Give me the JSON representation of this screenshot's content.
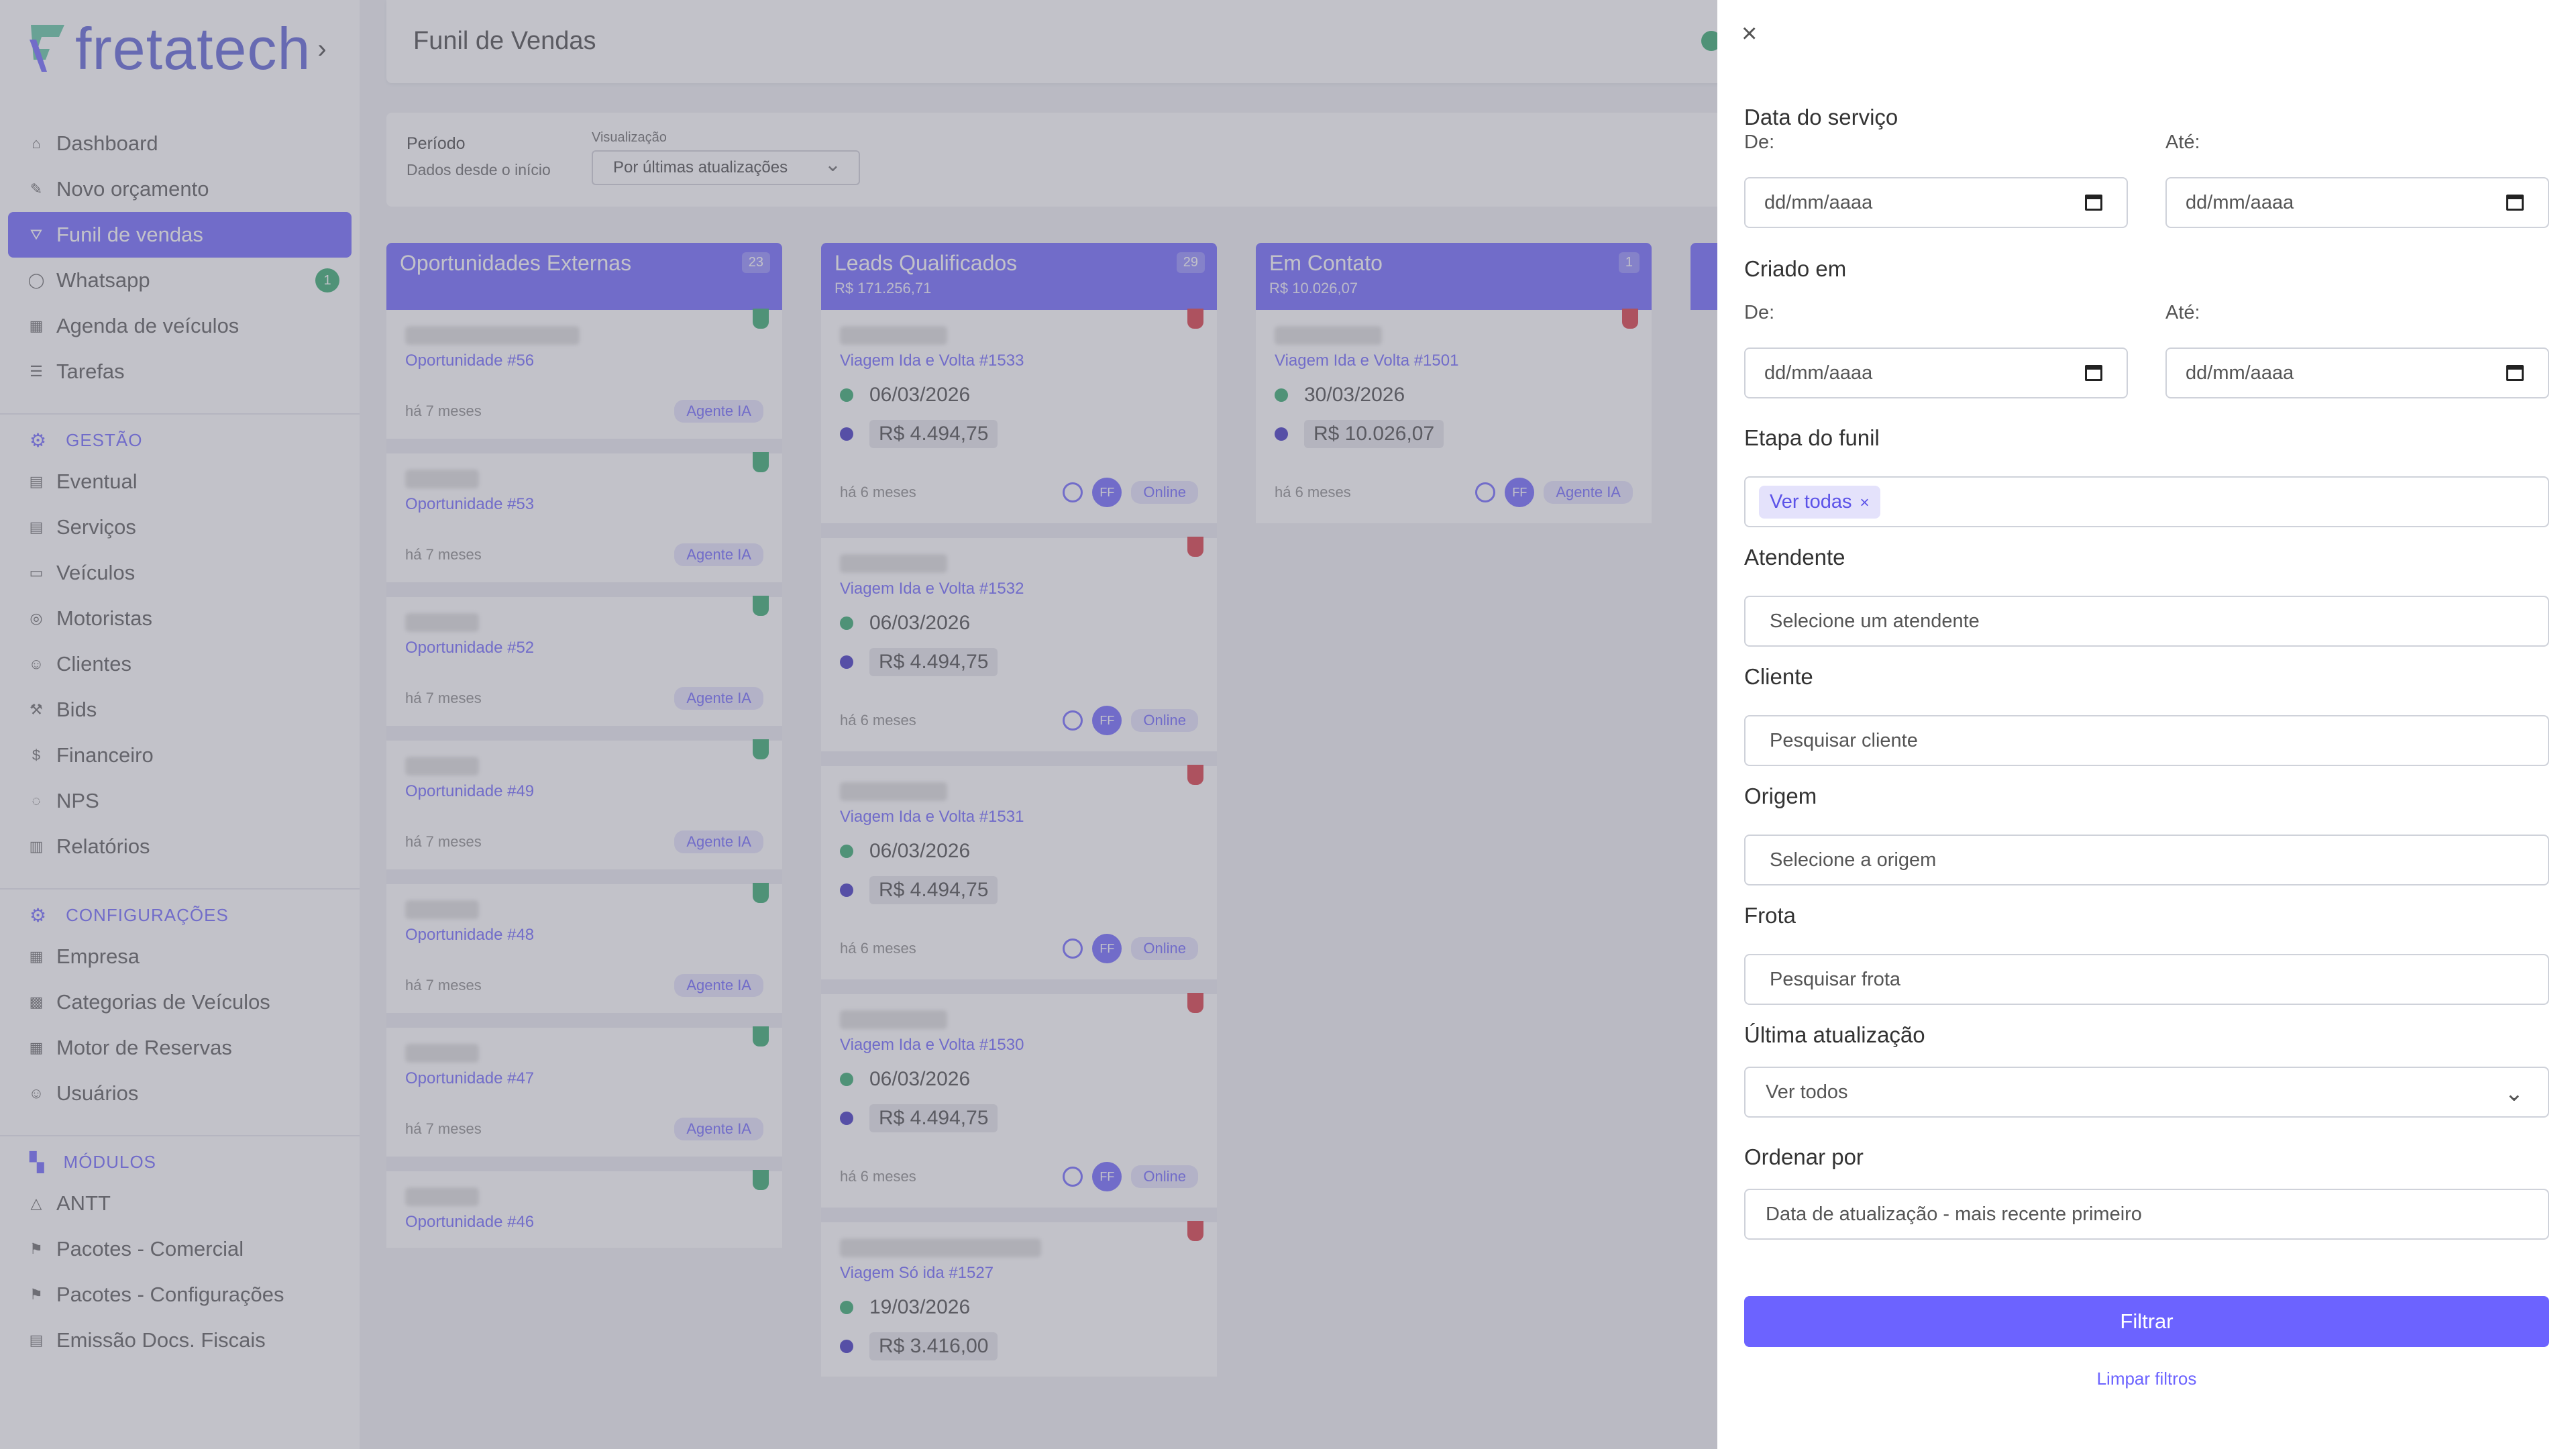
{
  "sidebar": {
    "logo_text": "fretatech",
    "items": [
      {
        "label": "Dashboard",
        "icon": "home-icon"
      },
      {
        "label": "Novo orçamento",
        "icon": "edit-icon"
      },
      {
        "label": "Funil de vendas",
        "icon": "funnel-icon",
        "active": true
      },
      {
        "label": "Whatsapp",
        "icon": "whatsapp-icon",
        "badge": "1"
      },
      {
        "label": "Agenda de veículos",
        "icon": "calendar-icon"
      },
      {
        "label": "Tarefas",
        "icon": "list-icon"
      }
    ],
    "gestao_title": "GESTÃO",
    "gestao": [
      "Eventual",
      "Serviços",
      "Veículos",
      "Motoristas",
      "Clientes",
      "Bids",
      "Financeiro",
      "NPS",
      "Relatórios"
    ],
    "config_title": "CONFIGURAÇÕES",
    "config": [
      "Empresa",
      "Categorias de Veículos",
      "Motor de Reservas",
      "Usuários"
    ],
    "modulos_title": "MÓDULOS",
    "modulos": [
      "ANTT",
      "Pacotes - Comercial",
      "Pacotes - Configurações",
      "Emissão Docs. Fiscais"
    ]
  },
  "header": {
    "title": "Funil de Vendas"
  },
  "filters_bar": {
    "period_label": "Período",
    "period_value": "Dados desde o início",
    "view_label": "Visualização",
    "view_value": "Por últimas atualizações"
  },
  "columns": [
    {
      "title": "Oportunidades Externas",
      "count": "23",
      "subtitle": "",
      "cards": [
        {
          "link": "Oportunidade #56",
          "time": "há 7 meses",
          "chip": "Agente IA"
        },
        {
          "link": "Oportunidade #53",
          "time": "há 7 meses",
          "chip": "Agente IA"
        },
        {
          "link": "Oportunidade #52",
          "time": "há 7 meses",
          "chip": "Agente IA"
        },
        {
          "link": "Oportunidade #49",
          "time": "há 7 meses",
          "chip": "Agente IA"
        },
        {
          "link": "Oportunidade #48",
          "time": "há 7 meses",
          "chip": "Agente IA"
        },
        {
          "link": "Oportunidade #47",
          "time": "há 7 meses",
          "chip": "Agente IA"
        },
        {
          "link": "Oportunidade #46",
          "time": "",
          "chip": ""
        }
      ]
    },
    {
      "title": "Leads Qualificados",
      "count": "29",
      "subtitle": "R$ 171.256,71",
      "cards": [
        {
          "link": "Viagem Ida e Volta #1533",
          "date": "06/03/2026",
          "value": "R$ 4.494,75",
          "time": "há 6 meses",
          "chip": "Online"
        },
        {
          "link": "Viagem Ida e Volta #1532",
          "date": "06/03/2026",
          "value": "R$ 4.494,75",
          "time": "há 6 meses",
          "chip": "Online"
        },
        {
          "link": "Viagem Ida e Volta #1531",
          "date": "06/03/2026",
          "value": "R$ 4.494,75",
          "time": "há 6 meses",
          "chip": "Online"
        },
        {
          "link": "Viagem Ida e Volta #1530",
          "date": "06/03/2026",
          "value": "R$ 4.494,75",
          "time": "há 6 meses",
          "chip": "Online"
        },
        {
          "link": "Viagem Só ida #1527",
          "date": "19/03/2026",
          "value": "R$ 3.416,00",
          "time": "",
          "chip": ""
        }
      ]
    },
    {
      "title": "Em Contato",
      "count": "1",
      "subtitle": "R$ 10.026,07",
      "cards": [
        {
          "link": "Viagem Ida e Volta #1501",
          "date": "30/03/2026",
          "value": "R$ 10.026,07",
          "time": "há 6 meses",
          "chip": "Agente IA"
        }
      ]
    }
  ],
  "drawer": {
    "close": "×",
    "service_date": {
      "label": "Data do serviço",
      "from": "De:",
      "to": "Até:",
      "from_ph": "dd/mm/aaaa",
      "to_ph": "dd/mm/aaaa"
    },
    "created": {
      "label": "Criado em",
      "from": "De:",
      "to": "Até:",
      "from_ph": "dd/mm/aaaa",
      "to_ph": "dd/mm/aaaa"
    },
    "stage": {
      "label": "Etapa do funil",
      "tag": "Ver todas"
    },
    "attendant": {
      "label": "Atendente",
      "placeholder": "Selecione um atendente"
    },
    "client": {
      "label": "Cliente",
      "placeholder": "Pesquisar cliente"
    },
    "origin": {
      "label": "Origem",
      "placeholder": "Selecione a origem"
    },
    "fleet": {
      "label": "Frota",
      "placeholder": "Pesquisar frota"
    },
    "last_update": {
      "label": "Última atualização",
      "value": "Ver todos"
    },
    "order": {
      "label": "Ordenar por",
      "value": "Data de atualização - mais recente primeiro"
    },
    "filter_button": "Filtrar",
    "clear_link": "Limpar filtros"
  },
  "colors": {
    "accent": "#6c63ff",
    "green": "#2fa86a",
    "red": "#d9333f"
  }
}
